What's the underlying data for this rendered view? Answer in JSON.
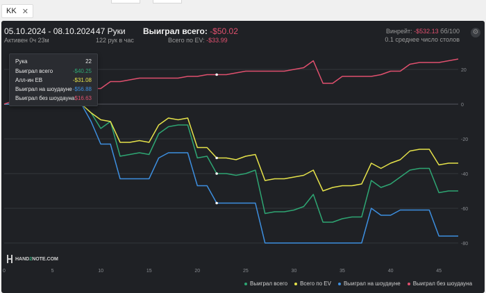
{
  "tab": {
    "label": "KK",
    "close": "✕"
  },
  "header": {
    "date_range": "05.10.2024 - 08.10.2024",
    "active": "Активен 0ч 23м",
    "hands": "47 Руки",
    "hands_rate": "122 рук в час",
    "won_label": "Выиграл всего: ",
    "won_value": "-$50.02",
    "ev_label": "Всего по EV: ",
    "ev_value": "-$33.99",
    "winrate_label": "Винрейт: ",
    "winrate_value": "-$532.13",
    "winrate_unit": " бб/100",
    "tables": "0.1 среднее число столов"
  },
  "tooltip": {
    "hand_label": "Рука",
    "hand_value": "22",
    "rows": [
      {
        "label": "Выиграл всего",
        "value": "-$40.25",
        "color": "#2ea673"
      },
      {
        "label": "Алл-ин EB",
        "value": "-$31.08",
        "color": "#e6e34a"
      },
      {
        "label": "Выиграл на шоудауне",
        "value": "-$56.88",
        "color": "#3d8fe0"
      },
      {
        "label": "Выиграл без шоудауна",
        "value": "$16.63",
        "color": "#e0506e"
      }
    ]
  },
  "logo": {
    "a": "HAND",
    "b": "2",
    "c": "NOTE.COM"
  },
  "chart_data": {
    "type": "line",
    "xlim": [
      0,
      47
    ],
    "ylim": [
      -90,
      30
    ],
    "x_ticks": [
      0,
      5,
      10,
      15,
      20,
      25,
      30,
      35,
      40,
      45
    ],
    "y_ticks": [
      20,
      0,
      -20,
      -40,
      -60,
      -80
    ],
    "y_tick_labels": [
      "20",
      "0",
      "-20",
      "-40",
      "-60",
      "-80"
    ],
    "grid": true,
    "legend_position": "bottom-right",
    "highlight_x": 22,
    "series": [
      {
        "name": "Выиграл всего",
        "color": "#2ea673",
        "values": [
          [
            0,
            0
          ],
          [
            1,
            0
          ],
          [
            2,
            0
          ],
          [
            3,
            0
          ],
          [
            4,
            0
          ],
          [
            5,
            0
          ],
          [
            6,
            0
          ],
          [
            7,
            0
          ],
          [
            8,
            0
          ],
          [
            9,
            -5
          ],
          [
            10,
            -14
          ],
          [
            11,
            -10
          ],
          [
            12,
            -30
          ],
          [
            13,
            -29
          ],
          [
            14,
            -28
          ],
          [
            15,
            -29
          ],
          [
            16,
            -17
          ],
          [
            17,
            -13
          ],
          [
            18,
            -12
          ],
          [
            19,
            -12
          ],
          [
            20,
            -31
          ],
          [
            21,
            -30
          ],
          [
            22,
            -40
          ],
          [
            23,
            -40
          ],
          [
            24,
            -41
          ],
          [
            25,
            -40
          ],
          [
            26,
            -38
          ],
          [
            27,
            -63
          ],
          [
            28,
            -62
          ],
          [
            29,
            -62
          ],
          [
            30,
            -61
          ],
          [
            31,
            -59
          ],
          [
            32,
            -52
          ],
          [
            33,
            -68
          ],
          [
            34,
            -68
          ],
          [
            35,
            -66
          ],
          [
            36,
            -65
          ],
          [
            37,
            -65
          ],
          [
            38,
            -44
          ],
          [
            39,
            -48
          ],
          [
            40,
            -46
          ],
          [
            41,
            -42
          ],
          [
            42,
            -38
          ],
          [
            43,
            -37
          ],
          [
            44,
            -37
          ],
          [
            45,
            -51
          ],
          [
            46,
            -50
          ],
          [
            47,
            -50
          ]
        ]
      },
      {
        "name": "Всего по EV",
        "color": "#e6e34a",
        "values": [
          [
            0,
            0
          ],
          [
            1,
            0
          ],
          [
            2,
            0
          ],
          [
            3,
            0
          ],
          [
            4,
            0
          ],
          [
            5,
            0
          ],
          [
            6,
            0
          ],
          [
            7,
            0
          ],
          [
            8,
            0
          ],
          [
            9,
            -5
          ],
          [
            10,
            -9
          ],
          [
            11,
            -10
          ],
          [
            12,
            -22
          ],
          [
            13,
            -22
          ],
          [
            14,
            -21
          ],
          [
            15,
            -22
          ],
          [
            16,
            -12
          ],
          [
            17,
            -8
          ],
          [
            18,
            -9
          ],
          [
            19,
            -8
          ],
          [
            20,
            -25
          ],
          [
            21,
            -25
          ],
          [
            22,
            -31
          ],
          [
            23,
            -31
          ],
          [
            24,
            -32
          ],
          [
            25,
            -30
          ],
          [
            26,
            -29
          ],
          [
            27,
            -44
          ],
          [
            28,
            -43
          ],
          [
            29,
            -43
          ],
          [
            30,
            -42
          ],
          [
            31,
            -41
          ],
          [
            32,
            -38
          ],
          [
            33,
            -50
          ],
          [
            34,
            -48
          ],
          [
            35,
            -47
          ],
          [
            36,
            -47
          ],
          [
            37,
            -46
          ],
          [
            38,
            -34
          ],
          [
            39,
            -37
          ],
          [
            40,
            -34
          ],
          [
            41,
            -32
          ],
          [
            42,
            -27
          ],
          [
            43,
            -26
          ],
          [
            44,
            -26
          ],
          [
            45,
            -35
          ],
          [
            46,
            -34
          ],
          [
            47,
            -34
          ]
        ]
      },
      {
        "name": "Выиграл на шоудауне",
        "color": "#3d8fe0",
        "values": [
          [
            0,
            0
          ],
          [
            1,
            0
          ],
          [
            2,
            0
          ],
          [
            3,
            0
          ],
          [
            4,
            0
          ],
          [
            5,
            0
          ],
          [
            6,
            0
          ],
          [
            7,
            0
          ],
          [
            8,
            0
          ],
          [
            9,
            -10
          ],
          [
            10,
            -23
          ],
          [
            11,
            -23
          ],
          [
            12,
            -43
          ],
          [
            13,
            -43
          ],
          [
            14,
            -43
          ],
          [
            15,
            -43
          ],
          [
            16,
            -31
          ],
          [
            17,
            -28
          ],
          [
            18,
            -28
          ],
          [
            19,
            -28
          ],
          [
            20,
            -47
          ],
          [
            21,
            -47
          ],
          [
            22,
            -57
          ],
          [
            23,
            -57
          ],
          [
            24,
            -57
          ],
          [
            25,
            -57
          ],
          [
            26,
            -57
          ],
          [
            27,
            -80
          ],
          [
            28,
            -80
          ],
          [
            29,
            -80
          ],
          [
            30,
            -80
          ],
          [
            31,
            -80
          ],
          [
            32,
            -80
          ],
          [
            33,
            -80
          ],
          [
            34,
            -80
          ],
          [
            35,
            -80
          ],
          [
            36,
            -80
          ],
          [
            37,
            -80
          ],
          [
            38,
            -60
          ],
          [
            39,
            -64
          ],
          [
            40,
            -64
          ],
          [
            41,
            -61
          ],
          [
            42,
            -61
          ],
          [
            43,
            -61
          ],
          [
            44,
            -61
          ],
          [
            45,
            -76
          ],
          [
            46,
            -76
          ],
          [
            47,
            -76
          ]
        ]
      },
      {
        "name": "Выиграл без шоудауна",
        "color": "#e0506e",
        "values": [
          [
            0,
            0
          ],
          [
            1,
            2
          ],
          [
            2,
            4
          ],
          [
            3,
            5
          ],
          [
            4,
            6
          ],
          [
            5,
            7
          ],
          [
            6,
            8
          ],
          [
            7,
            9
          ],
          [
            8,
            10
          ],
          [
            9,
            9
          ],
          [
            10,
            9
          ],
          [
            11,
            13
          ],
          [
            12,
            13
          ],
          [
            13,
            14
          ],
          [
            14,
            15
          ],
          [
            15,
            15
          ],
          [
            16,
            15
          ],
          [
            17,
            15
          ],
          [
            18,
            15
          ],
          [
            19,
            16
          ],
          [
            20,
            16
          ],
          [
            21,
            17
          ],
          [
            22,
            17
          ],
          [
            23,
            17
          ],
          [
            24,
            18
          ],
          [
            25,
            19
          ],
          [
            26,
            19
          ],
          [
            27,
            19
          ],
          [
            28,
            19
          ],
          [
            29,
            19
          ],
          [
            30,
            20
          ],
          [
            31,
            21
          ],
          [
            32,
            25
          ],
          [
            33,
            12
          ],
          [
            34,
            12
          ],
          [
            35,
            16
          ],
          [
            36,
            16
          ],
          [
            37,
            16
          ],
          [
            38,
            16
          ],
          [
            39,
            17
          ],
          [
            40,
            19
          ],
          [
            41,
            19
          ],
          [
            42,
            23
          ],
          [
            43,
            24
          ],
          [
            44,
            24
          ],
          [
            45,
            24
          ],
          [
            46,
            25
          ],
          [
            47,
            26
          ]
        ]
      }
    ]
  }
}
